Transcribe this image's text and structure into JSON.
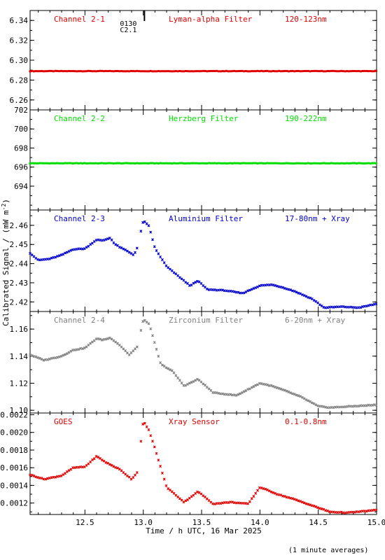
{
  "chart_data": {
    "type": "scatter",
    "ylabel": "Calibrated Signal / (mW m",
    "ylabel_exp": "-2",
    "ylabel_close": ")",
    "xlabel": "Time / h UTC, 16 Mar 2025",
    "xlim": [
      12.03,
      15.0
    ],
    "xticks": [
      12.5,
      13.0,
      13.5,
      14.0,
      14.5,
      15.0
    ],
    "xtick_labels": [
      "12.5",
      "13.0",
      "13.5",
      "14.0",
      "14.5",
      "15.0"
    ],
    "event_marker": {
      "x": 13.01,
      "labels": [
        "0130",
        "C2.1"
      ]
    },
    "footnote": "(1 minute averages)",
    "panels": [
      {
        "name": "Channel 2-1",
        "filter": "Lyman-alpha Filter",
        "band": "120-123nm",
        "color": "#e00000",
        "ylim": [
          6.25,
          6.35
        ],
        "yticks": [
          6.26,
          6.28,
          6.3,
          6.32,
          6.34
        ],
        "ytick_labels": [
          "6.26",
          "6.28",
          "6.30",
          "6.32",
          "6.34"
        ],
        "series_points": [
          [
            12.03,
            6.289
          ],
          [
            15.0,
            6.289
          ]
        ]
      },
      {
        "name": "Channel 2-2",
        "filter": "Herzberg Filter",
        "band": "190-222nm",
        "color": "#00dd00",
        "ylim": [
          691.5,
          702.0
        ],
        "yticks": [
          694,
          696,
          698,
          700,
          702
        ],
        "ytick_labels": [
          "694",
          "696",
          "698",
          "700",
          "702"
        ],
        "series_points": [
          [
            12.03,
            696.4
          ],
          [
            15.0,
            696.4
          ]
        ]
      },
      {
        "name": "Channel 2-3",
        "filter": "Aluminium Filter",
        "band": "17-80nm + Xray",
        "color": "#0000cc",
        "ylim": [
          2.415,
          2.468
        ],
        "yticks": [
          2.42,
          2.43,
          2.44,
          2.45,
          2.46
        ],
        "ytick_labels": [
          "2.42",
          "2.43",
          "2.44",
          "2.45",
          "2.46"
        ],
        "series_points": [
          [
            12.03,
            2.4455
          ],
          [
            12.1,
            2.4418
          ],
          [
            12.2,
            2.4425
          ],
          [
            12.3,
            2.4445
          ],
          [
            12.4,
            2.4475
          ],
          [
            12.5,
            2.4478
          ],
          [
            12.6,
            2.4525
          ],
          [
            12.65,
            2.452
          ],
          [
            12.72,
            2.4535
          ],
          [
            12.75,
            2.4505
          ],
          [
            12.8,
            2.4485
          ],
          [
            12.85,
            2.447
          ],
          [
            12.92,
            2.4445
          ],
          [
            12.95,
            2.4485
          ],
          [
            13.0,
            2.4625
          ],
          [
            13.05,
            2.4595
          ],
          [
            13.1,
            2.448
          ],
          [
            13.2,
            2.4385
          ],
          [
            13.3,
            2.4335
          ],
          [
            13.4,
            2.4285
          ],
          [
            13.47,
            2.431
          ],
          [
            13.55,
            2.4265
          ],
          [
            13.7,
            2.426
          ],
          [
            13.85,
            2.4245
          ],
          [
            14.0,
            2.4285
          ],
          [
            14.1,
            2.429
          ],
          [
            14.2,
            2.4275
          ],
          [
            14.3,
            2.4255
          ],
          [
            14.45,
            2.4215
          ],
          [
            14.55,
            2.417
          ],
          [
            14.7,
            2.4175
          ],
          [
            14.85,
            2.417
          ],
          [
            15.0,
            2.419
          ]
        ]
      },
      {
        "name": "Channel 2-4",
        "filter": "Zirconium Filter",
        "band": "6-20nm + Xray",
        "color": "#808080",
        "ylim": [
          1.098,
          1.173
        ],
        "yticks": [
          1.1,
          1.12,
          1.14,
          1.16
        ],
        "ytick_labels": [
          "1.10",
          "1.12",
          "1.14",
          "1.16"
        ],
        "series_points": [
          [
            12.03,
            1.141
          ],
          [
            12.15,
            1.137
          ],
          [
            12.3,
            1.14
          ],
          [
            12.4,
            1.1445
          ],
          [
            12.5,
            1.146
          ],
          [
            12.6,
            1.153
          ],
          [
            12.65,
            1.152
          ],
          [
            12.72,
            1.1535
          ],
          [
            12.8,
            1.148
          ],
          [
            12.88,
            1.141
          ],
          [
            12.95,
            1.147
          ],
          [
            13.0,
            1.167
          ],
          [
            13.05,
            1.164
          ],
          [
            13.15,
            1.134
          ],
          [
            13.25,
            1.129
          ],
          [
            13.35,
            1.118
          ],
          [
            13.47,
            1.123
          ],
          [
            13.6,
            1.113
          ],
          [
            13.8,
            1.111
          ],
          [
            14.0,
            1.12
          ],
          [
            14.1,
            1.118
          ],
          [
            14.2,
            1.115
          ],
          [
            14.35,
            1.11
          ],
          [
            14.5,
            1.103
          ],
          [
            14.6,
            1.102
          ],
          [
            14.8,
            1.103
          ],
          [
            15.0,
            1.104
          ]
        ]
      },
      {
        "name": "GOES",
        "filter": "Xray Sensor",
        "band": "0.1-0.8nm",
        "color": "#e00000",
        "ylim": [
          0.00107,
          0.00222
        ],
        "yticks": [
          0.0012,
          0.0014,
          0.0016,
          0.0018,
          0.002,
          0.0022
        ],
        "ytick_labels": [
          "0.0012",
          "0.0014",
          "0.0016",
          "0.0018",
          "0.0020",
          "0.0022"
        ],
        "series_points": [
          [
            12.03,
            0.00152
          ],
          [
            12.15,
            0.00147
          ],
          [
            12.3,
            0.00151
          ],
          [
            12.4,
            0.0016
          ],
          [
            12.5,
            0.00161
          ],
          [
            12.6,
            0.00173
          ],
          [
            12.68,
            0.00166
          ],
          [
            12.8,
            0.00158
          ],
          [
            12.9,
            0.00147
          ],
          [
            12.95,
            0.00155
          ],
          [
            13.0,
            0.00213
          ],
          [
            13.05,
            0.00202
          ],
          [
            13.1,
            0.00182
          ],
          [
            13.2,
            0.00138
          ],
          [
            13.35,
            0.00121
          ],
          [
            13.47,
            0.00133
          ],
          [
            13.6,
            0.00119
          ],
          [
            13.75,
            0.00121
          ],
          [
            13.9,
            0.00119
          ],
          [
            14.0,
            0.00138
          ],
          [
            14.15,
            0.0013
          ],
          [
            14.3,
            0.00124
          ],
          [
            14.45,
            0.00117
          ],
          [
            14.6,
            0.0011
          ],
          [
            14.75,
            0.00109
          ],
          [
            15.0,
            0.00112
          ]
        ]
      }
    ]
  }
}
